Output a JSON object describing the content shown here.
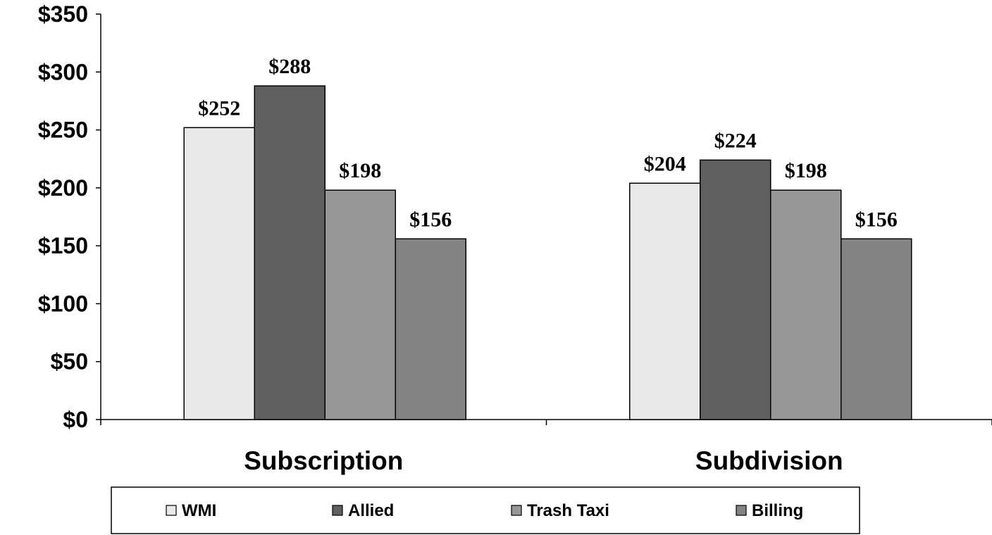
{
  "chart_data": {
    "type": "bar",
    "categories": [
      "Subscription",
      "Subdivision"
    ],
    "series": [
      {
        "name": "WMI",
        "values": [
          252,
          204
        ],
        "color": "#e8e8e8"
      },
      {
        "name": "Allied",
        "values": [
          288,
          224
        ],
        "color": "#606060"
      },
      {
        "name": "Trash Taxi",
        "values": [
          198,
          198
        ],
        "color": "#989898"
      },
      {
        "name": "Billing",
        "values": [
          156,
          156
        ],
        "color": "#838383"
      }
    ],
    "y_tick_labels": [
      "$0",
      "$50",
      "$100",
      "$150",
      "$200",
      "$250",
      "$300",
      "$350"
    ],
    "data_labels": [
      [
        "$252",
        "$204"
      ],
      [
        "$288",
        "$224"
      ],
      [
        "$198",
        "$198"
      ],
      [
        "$156",
        "$156"
      ]
    ],
    "ylim": [
      0,
      350
    ],
    "ytick_step": 50,
    "grid": false,
    "legend_position": "bottom",
    "title": "",
    "xlabel": "",
    "ylabel": ""
  }
}
